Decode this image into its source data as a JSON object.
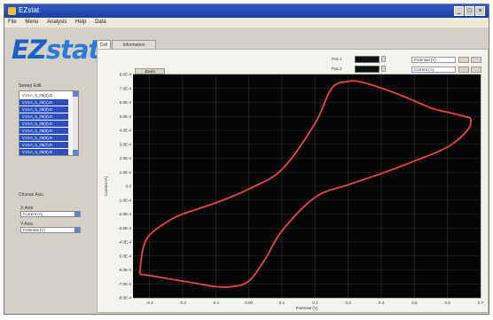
{
  "window": {
    "title": "EZstat"
  },
  "menu": {
    "items": [
      "File",
      "Menu",
      "Analysis",
      "Help",
      "Data"
    ]
  },
  "logo": {
    "brand_a": "EZ",
    "brand_b": "stat"
  },
  "sidebar": {
    "sweep_label": "Sweep Edit",
    "sweeps": [
      "CV1A_5_25(0).D",
      "CV1A_5_25(1).D",
      "CV1A_5_25(2).D",
      "CV1A_5_25(3).D",
      "CV1A_5_25(4).D",
      "CV1A_5_25(5).D",
      "CV1A_5_25(6).D",
      "CV1A_5_25(7).D",
      "CV1A_5_25(8).D"
    ],
    "choose_axis": "Choose Axis",
    "xaxis_label": "X-Axis",
    "xaxis_value": "Current (A)",
    "yaxis_label": "Y-Axis",
    "yaxis_value": "Potential (V)"
  },
  "tabs": [
    {
      "label": "Cell"
    },
    {
      "label": "Information"
    }
  ],
  "toolbar": {
    "btn1": "Zoom",
    "p1_label": "Pos 1",
    "p2_label": "Pos 2",
    "field1": "Potential (V)",
    "field2": "Current (A)"
  },
  "colors": {
    "trace": "#e8463a",
    "plot_bg": "#050505",
    "grid": "#2f2f2f",
    "accent": "#2a4fc0"
  },
  "chart_data": {
    "type": "line",
    "xlabel": "Potential (V)",
    "ylabel": "Current (A)",
    "xlim": [
      -0.35,
      0.7
    ],
    "ylim": [
      -0.0008,
      0.0008
    ],
    "xticks": [
      "-0.3",
      "-0.2",
      "-0.1",
      "0.00",
      "0.1",
      "0.2",
      "0.3",
      "0.4",
      "0.5",
      "0.6",
      "0.7"
    ],
    "yticks": [
      "8.0E-4",
      "7.0E-4",
      "6.0E-4",
      "5.0E-4",
      "4.0E-4",
      "3.0E-4",
      "2.0E-4",
      "1.0E-4",
      "0.0",
      "-1.0E-4",
      "-2.0E-4",
      "-3.0E-4",
      "-4.0E-4",
      "-5.0E-4",
      "-6.0E-4",
      "-7.0E-4",
      "-8.0E-4"
    ],
    "series": [
      {
        "x": [
          -0.33,
          -0.32,
          -0.3,
          -0.25,
          -0.2,
          -0.1,
          0.0,
          0.1,
          0.2,
          0.25,
          0.3,
          0.35,
          0.45,
          0.55,
          0.6,
          0.65,
          0.67,
          0.66,
          0.6,
          0.5,
          0.4,
          0.3,
          0.2,
          0.1,
          0.05,
          0.0,
          -0.05,
          -0.1,
          -0.15,
          -0.2,
          -0.25,
          -0.3,
          -0.33
        ],
        "y": [
          -0.00063,
          -0.00045,
          -0.00035,
          -0.00026,
          -0.0002,
          -0.00012,
          -2e-05,
          0.00012,
          0.00045,
          0.0007,
          0.00075,
          0.00074,
          0.00066,
          0.00056,
          0.00053,
          0.0005,
          0.00048,
          0.0004,
          0.00028,
          0.00018,
          9e-05,
          1e-05,
          -8e-05,
          -0.00032,
          -0.00052,
          -0.00068,
          -0.00072,
          -0.00072,
          -0.0007,
          -0.00068,
          -0.00066,
          -0.00064,
          -0.00063
        ]
      }
    ]
  }
}
